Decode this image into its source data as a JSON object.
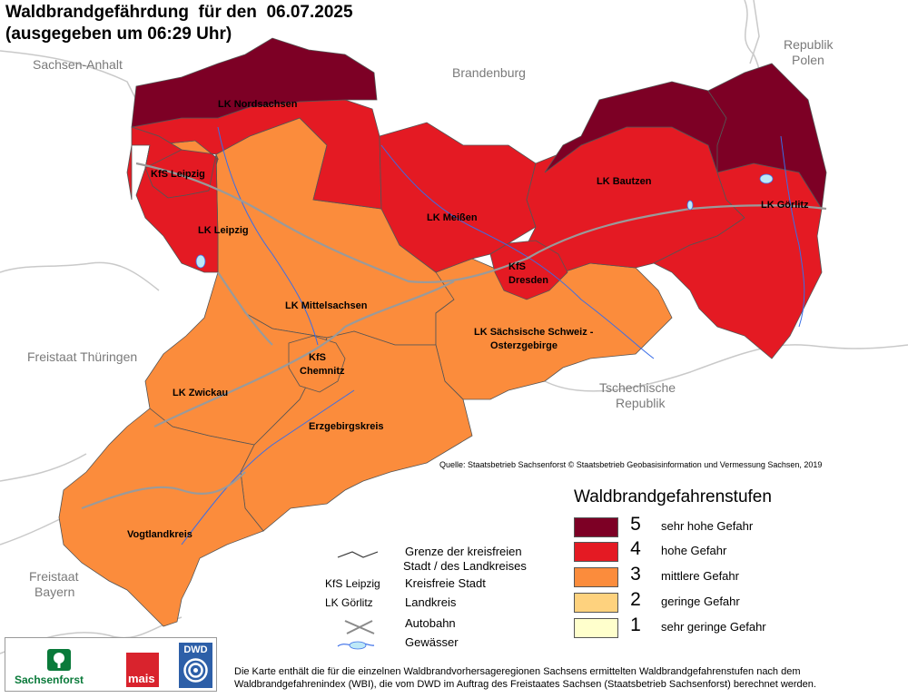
{
  "title": {
    "line1": "Waldbrandgefährdung  für den  06.07.2025",
    "line2": "(ausgegeben um 06:29 Uhr)"
  },
  "neighbors": {
    "sachsen_anhalt": "Sachsen-Anhalt",
    "brandenburg": "Brandenburg",
    "polen_1": "Republik",
    "polen_2": "Polen",
    "thueringen": "Freistaat Thüringen",
    "tschechien_1": "Tschechische",
    "tschechien_2": "Republik",
    "bayern_1": "Freistaat",
    "bayern_2": "Bayern"
  },
  "districts": {
    "nordsachsen": "LK Nordsachsen",
    "leipzig_city": "KfS Leipzig",
    "leipzig": "LK Leipzig",
    "meissen": "LK Meißen",
    "bautzen": "LK Bautzen",
    "goerlitz": "LK Görlitz",
    "dresden_1": "KfS",
    "dresden_2": "Dresden",
    "mittelsachsen": "LK Mittelsachsen",
    "saechsische_schweiz_1": "LK Sächsische Schweiz -",
    "saechsische_schweiz_2": "Osterzgebirge",
    "chemnitz_1": "KfS",
    "chemnitz_2": "Chemnitz",
    "zwickau": "LK Zwickau",
    "erzgebirge": "Erzgebirgskreis",
    "vogtland": "Vogtlandkreis"
  },
  "source": "Quelle: Staatsbetrieb Sachsenforst  © Staatsbetrieb Geobasisinformation und Vermessung Sachsen, 2019",
  "legend": {
    "title": "Waldbrandgefahrenstufen",
    "levels": [
      {
        "level": "5",
        "label": "sehr hohe Gefahr",
        "color": "#7d0025"
      },
      {
        "level": "4",
        "label": "hohe Gefahr",
        "color": "#e41a23"
      },
      {
        "level": "3",
        "label": "mittlere Gefahr",
        "color": "#fb8c3c"
      },
      {
        "level": "2",
        "label": "geringe Gefahr",
        "color": "#fed27e"
      },
      {
        "level": "1",
        "label": "sehr geringe Gefahr",
        "color": "#ffffcc"
      }
    ]
  },
  "key": {
    "border_1": "Grenze der kreisfreien",
    "border_2": "Stadt / des Landkreises",
    "city_sample": "KfS Leipzig",
    "city_label": "Kreisfreie Stadt",
    "county_sample": "LK Görlitz",
    "county_label": "Landkreis",
    "autobahn": "Autobahn",
    "water": "Gewässer"
  },
  "logos": {
    "sachsenforst": "Sachsenforst",
    "mais": "mais",
    "dwd": "DWD"
  },
  "footnote": "Die Karte enthält die für die einzelnen Waldbrandvorhersageregionen Sachsens ermittelten Waldbrandgefahrenstufen nach dem Waldbrandgefahrenindex (WBI), die vom DWD im Auftrag des Freistaates Sachsen (Staatsbetrieb Sachsenforst) berechnet werden.",
  "map_data": {
    "regions": [
      {
        "name": "LK Nordsachsen",
        "level": 4
      },
      {
        "name": "KfS Leipzig",
        "level": 3
      },
      {
        "name": "LK Leipzig",
        "level": 3
      },
      {
        "name": "LK Meißen",
        "level": 4
      },
      {
        "name": "LK Bautzen",
        "level": 4
      },
      {
        "name": "LK Görlitz",
        "level": 4
      },
      {
        "name": "KfS Dresden",
        "level": 4
      },
      {
        "name": "LK Mittelsachsen",
        "level": 3
      },
      {
        "name": "LK Sächsische Schweiz - Osterzgebirge",
        "level": 3
      },
      {
        "name": "KfS Chemnitz",
        "level": 3
      },
      {
        "name": "LK Zwickau",
        "level": 3
      },
      {
        "name": "Erzgebirgskreis",
        "level": 3
      },
      {
        "name": "Vogtlandkreis",
        "level": 3
      }
    ]
  }
}
